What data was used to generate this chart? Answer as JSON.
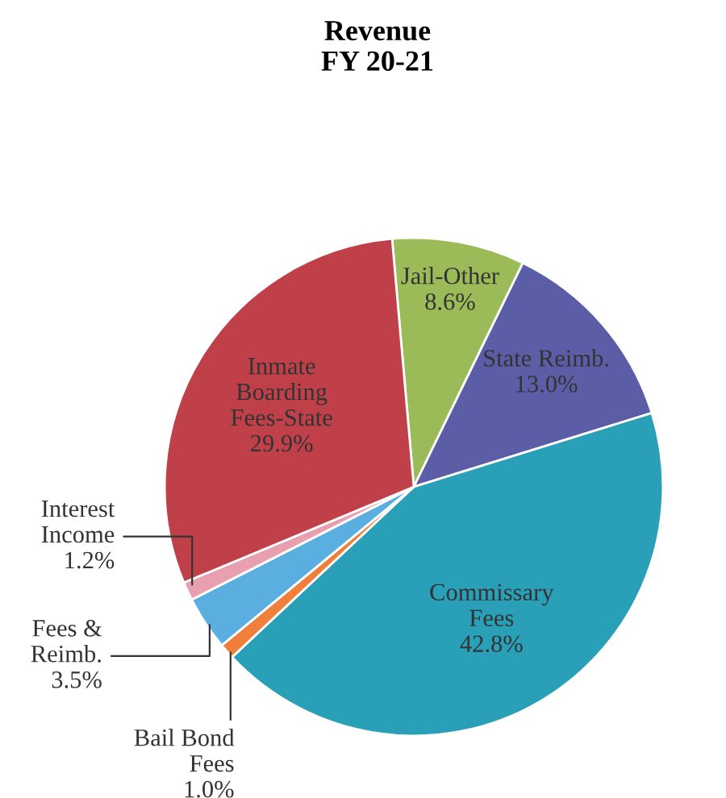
{
  "chart_data": {
    "type": "pie",
    "title": "Revenue\nFY 20-21",
    "categories": [
      "Jail-Other",
      "State Reimb.",
      "Commissary\nFees",
      "Bail Bond\nFees",
      "Fees &\nReimb.",
      "Interest\nIncome",
      "Inmate\nBoarding\nFees-State"
    ],
    "values": [
      8.6,
      13.0,
      42.8,
      1.0,
      3.5,
      1.2,
      29.9
    ],
    "colors": [
      "#9bbb59",
      "#5b5ea6",
      "#2a9fb8",
      "#f07f3c",
      "#5aaee0",
      "#e8a0b0",
      "#c0404a"
    ],
    "value_labels": [
      "8.6%",
      "13.0%",
      "42.8%",
      "1.0%",
      "3.5%",
      "1.2%",
      "29.9%"
    ]
  }
}
